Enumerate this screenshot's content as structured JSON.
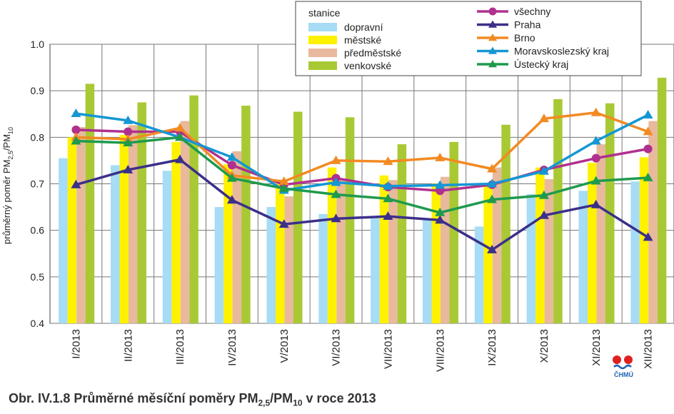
{
  "chart_data": {
    "type": "bar",
    "ylabel_main": "průměrný poměr PM",
    "ylabel_sub1": "2,5",
    "ylabel_mid": "/PM",
    "ylabel_sub2": "10",
    "ylim": [
      0.4,
      1.0
    ],
    "yticks": [
      "0.4",
      "0.5",
      "0.6",
      "0.7",
      "0.8",
      "0.9",
      "1.0"
    ],
    "grid": true,
    "categories": [
      "I/2013",
      "II/2013",
      "III/2013",
      "IV/2013",
      "V/2013",
      "VI/2013",
      "VII/2013",
      "VIII/2013",
      "IX/2013",
      "X/2013",
      "XI/2013",
      "XII/2013"
    ],
    "legend_bar_title": "stanice",
    "bar_series": [
      {
        "name": "dopravní",
        "color": "#a6dcf5",
        "values": [
          0.755,
          0.74,
          0.728,
          0.65,
          0.65,
          0.635,
          0.63,
          0.625,
          0.608,
          0.678,
          0.685,
          0.705
        ]
      },
      {
        "name": "městské",
        "color": "#fff200",
        "values": [
          0.8,
          0.805,
          0.79,
          0.742,
          0.708,
          0.735,
          0.718,
          0.7,
          0.7,
          0.735,
          0.745,
          0.757
        ]
      },
      {
        "name": "předměstské",
        "color": "#e8b99c",
        "values": [
          0.822,
          0.826,
          0.835,
          0.77,
          0.673,
          0.71,
          0.708,
          0.715,
          0.735,
          0.71,
          0.785,
          0.835
        ]
      },
      {
        "name": "venkovské",
        "color": "#a8c933",
        "values": [
          0.915,
          0.875,
          0.89,
          0.868,
          0.855,
          0.843,
          0.785,
          0.79,
          0.827,
          0.882,
          0.873,
          0.928
        ]
      }
    ],
    "line_series": [
      {
        "name": "všechny",
        "color": "#b0308f",
        "marker": "circle",
        "values": [
          0.816,
          0.812,
          0.812,
          0.74,
          0.698,
          0.712,
          0.693,
          0.685,
          0.698,
          0.73,
          0.755,
          0.775
        ]
      },
      {
        "name": "Praha",
        "color": "#3b2f8a",
        "marker": "triangle",
        "values": [
          0.698,
          0.73,
          0.752,
          0.665,
          0.613,
          0.625,
          0.63,
          0.622,
          0.558,
          0.632,
          0.655,
          0.585
        ]
      },
      {
        "name": "Brno",
        "color": "#f28a22",
        "marker": "triangle",
        "values": [
          0.8,
          0.796,
          0.82,
          0.718,
          0.705,
          0.75,
          0.748,
          0.756,
          0.732,
          0.84,
          0.853,
          0.812
        ]
      },
      {
        "name": "Moravskoslezský kraj",
        "color": "#1597d3",
        "marker": "triangle",
        "values": [
          0.851,
          0.836,
          0.8,
          0.757,
          0.686,
          0.703,
          0.695,
          0.697,
          0.7,
          0.727,
          0.792,
          0.848
        ]
      },
      {
        "name": "Ústecký kraj",
        "color": "#1f9a4d",
        "marker": "triangle",
        "values": [
          0.792,
          0.788,
          0.8,
          0.712,
          0.69,
          0.677,
          0.668,
          0.638,
          0.666,
          0.675,
          0.706,
          0.713
        ]
      }
    ]
  },
  "caption": {
    "prefix": "Obr. IV.1.8  Průměrné měsíční poměry PM",
    "sub1": "2,5",
    "mid": "/PM",
    "sub2": "10",
    "suffix": " v roce 2013"
  },
  "logo_text": "ČHMÚ"
}
